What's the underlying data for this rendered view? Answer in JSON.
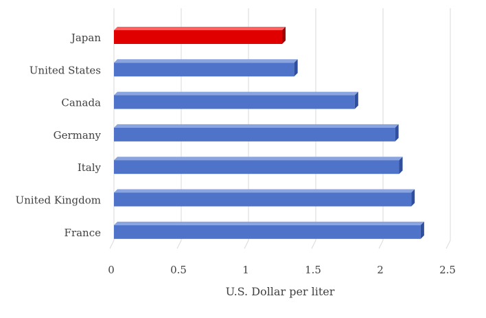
{
  "chart_data": {
    "type": "bar",
    "orientation": "horizontal",
    "style": "3d",
    "categories": [
      "Japan",
      "United States",
      "Canada",
      "Germany",
      "Italy",
      "United Kingdom",
      "France"
    ],
    "values": [
      1.25,
      1.34,
      1.79,
      2.09,
      2.12,
      2.21,
      2.28
    ],
    "highlight_index": 0,
    "colors": {
      "bar": "#4f73c8",
      "bar_top": "#8aa4e0",
      "bar_side": "#2f4f9e",
      "highlight": "#e00000",
      "highlight_top": "#ff6060",
      "highlight_side": "#a00000",
      "grid": "#d9d9d9"
    },
    "xlim": [
      0,
      2.5
    ],
    "xticks": [
      "0",
      "0.5",
      "1",
      "1.5",
      "2",
      "2.5"
    ],
    "xlabel": "U.S. Dollar per liter",
    "grid": true,
    "title": "",
    "legend": "none"
  }
}
